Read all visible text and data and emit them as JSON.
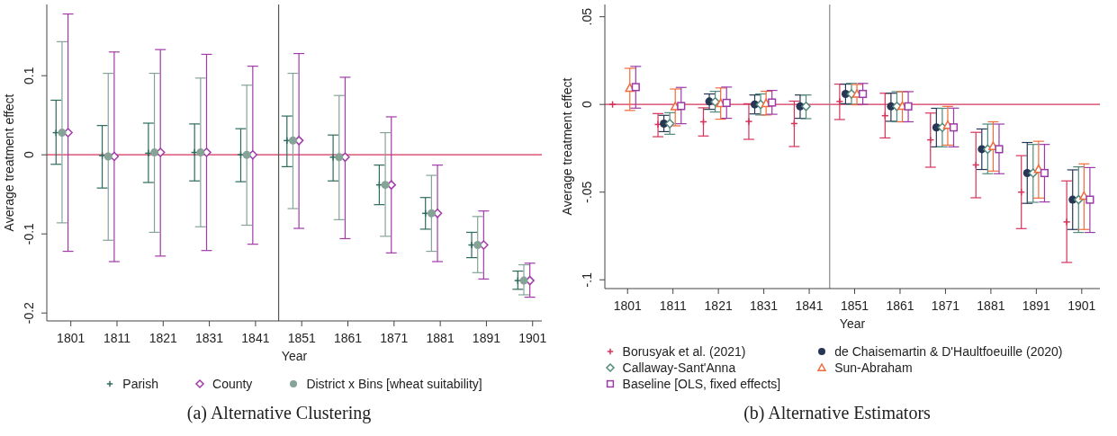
{
  "chart_data": [
    {
      "type": "scatter",
      "title": "(a)  Alternative Clustering",
      "xlabel": "Year",
      "ylabel": "Average treatment effect",
      "xlim": [
        1795.8,
        1903
      ],
      "xticks": [
        1801,
        1811,
        1821,
        1831,
        1841,
        1851,
        1861,
        1871,
        1881,
        1891,
        1901
      ],
      "ylim": [
        -0.21,
        0.19
      ],
      "yticks": [
        {
          "value": -0.2,
          "label": "-0.2"
        },
        {
          "value": -0.1,
          "label": "-0.1"
        },
        0,
        {
          "value": 0.1,
          "label": "0.1"
        }
      ],
      "grid": false,
      "legend": "bottom",
      "ref_lines": [
        {
          "axis": "y",
          "value": 0,
          "color": "#d6335a"
        },
        {
          "axis": "x",
          "value": 1846,
          "color": "#555555"
        }
      ],
      "series": [
        {
          "name": "Parish",
          "color": "#2e6b5e",
          "marker": "cross",
          "x": [
            1797.8,
            1807.8,
            1817.8,
            1827.8,
            1837.8,
            1847.8,
            1857.8,
            1867.8,
            1877.8,
            1887.8,
            1897.8
          ],
          "values": [
            0.028,
            -0.001,
            0.002,
            0.003,
            0,
            0.018,
            -0.003,
            -0.038,
            -0.074,
            -0.114,
            -0.159
          ],
          "errors": [
            [
              -0.012,
              0.069
            ],
            [
              -0.042,
              0.037
            ],
            [
              -0.035,
              0.04
            ],
            [
              -0.033,
              0.039
            ],
            [
              -0.034,
              0.033
            ],
            [
              -0.015,
              0.049
            ],
            [
              -0.033,
              0.025
            ],
            [
              -0.063,
              -0.013
            ],
            [
              -0.094,
              -0.054
            ],
            [
              -0.13,
              -0.098
            ],
            [
              -0.17,
              -0.147
            ]
          ]
        },
        {
          "name": "County",
          "color": "#a23aa8",
          "marker": "diamond",
          "x": [
            1800.4,
            1810.4,
            1820.4,
            1830.4,
            1840.4,
            1850.4,
            1860.4,
            1870.4,
            1880.4,
            1890.4,
            1900.4
          ],
          "values": [
            0.028,
            -0.002,
            0.003,
            0.003,
            0,
            0.018,
            -0.003,
            -0.038,
            -0.074,
            -0.114,
            -0.159
          ],
          "errors": [
            [
              -0.122,
              0.178
            ],
            [
              -0.135,
              0.13
            ],
            [
              -0.128,
              0.133
            ],
            [
              -0.121,
              0.127
            ],
            [
              -0.113,
              0.112
            ],
            [
              -0.093,
              0.128
            ],
            [
              -0.106,
              0.098
            ],
            [
              -0.124,
              0.048
            ],
            [
              -0.135,
              -0.013
            ],
            [
              -0.157,
              -0.071
            ],
            [
              -0.18,
              -0.137
            ]
          ]
        },
        {
          "name": "District x Bins [wheat suitability]",
          "color": "#86a398",
          "marker": "circle",
          "x": [
            1799.1,
            1809.1,
            1819.1,
            1829.1,
            1839.1,
            1849.1,
            1859.1,
            1869.1,
            1879.1,
            1889.1,
            1899.1
          ],
          "values": [
            0.028,
            -0.002,
            0.003,
            0.003,
            0,
            0.018,
            -0.003,
            -0.038,
            -0.074,
            -0.114,
            -0.159
          ],
          "errors": [
            [
              -0.086,
              0.143
            ],
            [
              -0.108,
              0.103
            ],
            [
              -0.098,
              0.103
            ],
            [
              -0.091,
              0.097
            ],
            [
              -0.089,
              0.088
            ],
            [
              -0.068,
              0.103
            ],
            [
              -0.082,
              0.075
            ],
            [
              -0.103,
              0.028
            ],
            [
              -0.122,
              -0.026
            ],
            [
              -0.149,
              -0.078
            ],
            [
              -0.177,
              -0.139
            ]
          ]
        }
      ]
    },
    {
      "type": "scatter",
      "title": "(b)  Alternative Estimators",
      "xlabel": "Year",
      "ylabel": "Average treatment effect",
      "xlim": [
        1796,
        1905
      ],
      "xticks": [
        1801,
        1811,
        1821,
        1831,
        1841,
        1851,
        1861,
        1871,
        1881,
        1891,
        1901
      ],
      "ylim": [
        -0.105,
        0.057
      ],
      "yticks": [
        {
          "value": -0.1,
          "label": "-.1"
        },
        {
          "value": -0.05,
          "label": "-.05"
        },
        0,
        {
          "value": 0.05,
          "label": ".05"
        }
      ],
      "grid": false,
      "legend": "bottom",
      "ref_lines": [
        {
          "axis": "y",
          "value": 0,
          "color": "#d6335a"
        },
        {
          "axis": "x",
          "value": 1845.5,
          "color": "#888888"
        }
      ],
      "series": [
        {
          "name": "Borusyak et al. (2021)",
          "color": "#d6335a",
          "marker": "cross",
          "x": [
            1797.7,
            1807.7,
            1817.7,
            1827.7,
            1837.7,
            1847.7,
            1857.7,
            1867.7,
            1877.7,
            1887.7,
            1897.7
          ],
          "values": [
            0,
            -0.0114,
            -0.0099,
            -0.0097,
            -0.0109,
            0.0017,
            -0.0064,
            -0.0202,
            -0.0345,
            -0.05,
            -0.067
          ],
          "errors": [
            null,
            [
              -0.0184,
              -0.0052
            ],
            [
              -0.018,
              -0.0019
            ],
            [
              -0.0199,
              0.0004
            ],
            [
              -0.024,
              0.0019
            ],
            [
              -0.0086,
              0.0116
            ],
            [
              -0.0191,
              0.0064
            ],
            [
              -0.0358,
              -0.0049
            ],
            [
              -0.0532,
              -0.0159
            ],
            [
              -0.0708,
              -0.0292
            ],
            [
              -0.0901,
              -0.0436
            ]
          ]
        },
        {
          "name": "de Chaisemartin & D'Haultfoeuille (2020)",
          "color": "#283655",
          "marker": "circle",
          "x": [
            null,
            1809,
            1819,
            1829,
            1839,
            1849,
            1859,
            1869,
            1879,
            1889,
            1899
          ],
          "values": [
            null,
            -0.0109,
            0.0017,
            0,
            -0.0011,
            0.006,
            -0.0011,
            -0.0131,
            -0.0255,
            -0.0391,
            -0.0543
          ],
          "errors": [
            null,
            [
              -0.0155,
              -0.0062
            ],
            [
              -0.0028,
              0.006
            ],
            [
              -0.0054,
              0.0054
            ],
            [
              -0.0079,
              0.0054
            ],
            [
              0.0004,
              0.0116
            ],
            [
              -0.0096,
              0.0064
            ],
            [
              -0.0242,
              -0.0022
            ],
            [
              -0.0371,
              -0.014
            ],
            [
              -0.0564,
              -0.0217
            ],
            [
              -0.0713,
              -0.0373
            ]
          ]
        },
        {
          "name": "Callaway-Sant'Anna",
          "color": "#4f8a7b",
          "marker": "diamond",
          "x": [
            null,
            1810.3,
            1820.3,
            1830.3,
            1840.3,
            1850.3,
            1860.3,
            1870.3,
            1880.3,
            1890.3,
            1900.3
          ],
          "values": [
            null,
            -0.0109,
            0.0015,
            0,
            -0.0011,
            0.006,
            -0.0011,
            -0.0131,
            -0.0255,
            -0.0391,
            -0.0543
          ],
          "errors": [
            null,
            [
              -0.017,
              -0.0047
            ],
            [
              -0.0043,
              0.0075
            ],
            [
              -0.006,
              0.006
            ],
            [
              -0.0081,
              0.0054
            ],
            [
              0,
              0.012
            ],
            [
              -0.0099,
              0.0073
            ],
            [
              -0.0242,
              -0.0022
            ],
            [
              -0.0395,
              -0.0112
            ],
            [
              -0.0558,
              -0.0228
            ],
            [
              -0.073,
              -0.0356
            ]
          ]
        },
        {
          "name": "Sun-Abraham",
          "color": "#f26b3a",
          "marker": "triangle",
          "x": [
            1801.5,
            1811.5,
            1821.5,
            1831.5,
            null,
            1851.5,
            1861.5,
            1871.5,
            1881.5,
            1891.5,
            1901.5
          ],
          "values": [
            0.0094,
            -0.0011,
            0.0007,
            0.0007,
            null,
            0.006,
            -0.0009,
            -0.0118,
            -0.0238,
            -0.0369,
            -0.0522
          ],
          "errors": [
            [
              -0.0034,
              0.0206
            ],
            [
              -0.0122,
              0.0088
            ],
            [
              -0.0084,
              0.0094
            ],
            [
              -0.006,
              0.0075
            ],
            null,
            [
              -0.0002,
              0.0114
            ],
            [
              -0.0099,
              0.0073
            ],
            [
              -0.0232,
              -0.0011
            ],
            [
              -0.038,
              -0.0099
            ],
            [
              -0.0534,
              -0.021
            ],
            [
              -0.0713,
              -0.0339
            ]
          ]
        },
        {
          "name": "Baseline [OLS, fixed effects]",
          "color": "#9c3aa8",
          "marker": "square",
          "x": [
            1802.8,
            1812.8,
            1822.8,
            1832.8,
            null,
            1852.8,
            1862.8,
            1872.8,
            1882.8,
            1892.8,
            1902.8
          ],
          "values": [
            0.0099,
            -0.0009,
            0.0009,
            0.0011,
            null,
            0.006,
            -0.0011,
            -0.0131,
            -0.0255,
            -0.0391,
            -0.0543
          ],
          "errors": [
            [
              -0.0021,
              0.0217
            ],
            [
              -0.011,
              0.0097
            ],
            [
              -0.0079,
              0.0099
            ],
            [
              -0.0056,
              0.008
            ],
            null,
            [
              0,
              0.012
            ],
            [
              -0.0099,
              0.0073
            ],
            [
              -0.0242,
              -0.0021
            ],
            [
              -0.0395,
              -0.0112
            ],
            [
              -0.0556,
              -0.0228
            ],
            [
              -0.073,
              -0.036
            ]
          ]
        }
      ]
    }
  ]
}
